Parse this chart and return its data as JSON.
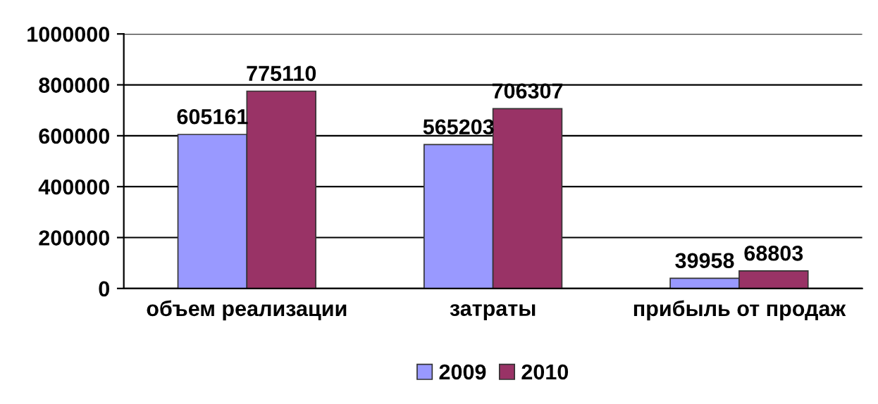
{
  "chart_data": {
    "type": "bar",
    "categories": [
      "объем реализации",
      "затраты",
      "прибыль от продаж"
    ],
    "series": [
      {
        "name": "2009",
        "color": "#9999ff",
        "values": [
          605161,
          565203,
          39958
        ]
      },
      {
        "name": "2010",
        "color": "#993366",
        "values": [
          775110,
          706307,
          68803
        ]
      }
    ],
    "ylim": [
      0,
      1000000
    ],
    "yticks": [
      0,
      200000,
      400000,
      600000,
      800000,
      1000000
    ],
    "grid": "y",
    "legend": "bottom",
    "data_labels": true
  }
}
